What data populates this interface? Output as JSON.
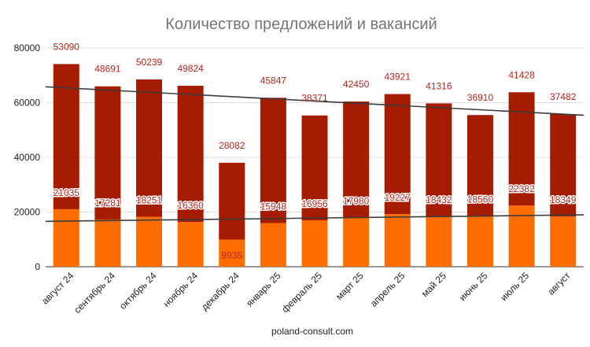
{
  "chart_data": {
    "type": "bar",
    "stacked": true,
    "title": "Количество предложений и вакансий",
    "categories": [
      "август 24",
      "сентябрь 24",
      "октябрь 24",
      "ноябрь 24",
      "декабрь 24",
      "январь 25",
      "февраль 25",
      "март 25",
      "апрель 25",
      "май 25",
      "июнь 25",
      "июль 25",
      "август"
    ],
    "series": [
      {
        "values": [
          21035,
          17281,
          18251,
          16360,
          9935,
          15948,
          16956,
          17980,
          19227,
          18432,
          18560,
          22382,
          18349
        ],
        "color": "#ff6d01"
      },
      {
        "values": [
          53090,
          48691,
          50239,
          49824,
          28082,
          45847,
          38371,
          42450,
          43921,
          41316,
          36910,
          41428,
          37482
        ],
        "color": "#a61c00"
      }
    ],
    "trendlines": [
      {
        "of_series": 0,
        "color": "#3c3c3c",
        "start": 16600,
        "end": 19000
      },
      {
        "of_series": 1,
        "color": "#3c3c3c",
        "start": 65800,
        "end": 55400
      }
    ],
    "ylim": [
      0,
      80000
    ],
    "yticks": [
      0,
      20000,
      40000,
      60000,
      80000
    ],
    "xlabel": "",
    "ylabel": "",
    "grid": true,
    "legend": "none",
    "footer": "poland-consult.com"
  }
}
